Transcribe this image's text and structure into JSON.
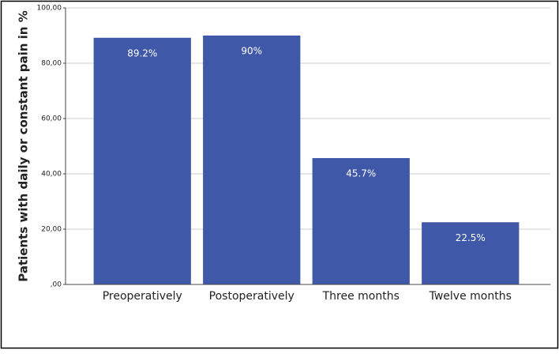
{
  "chart_data": {
    "type": "bar",
    "y_label": "Patients with daily or constant pain in %",
    "categories": [
      "Preoperatively",
      "Postoperatively",
      "Three months",
      "Twelve months"
    ],
    "values": [
      89.2,
      90,
      45.7,
      22.5
    ],
    "value_labels": [
      "89.2%",
      "90%",
      "45.7%",
      "22.5%"
    ],
    "color": "#3f58a8",
    "ylim": [
      0,
      100
    ],
    "yticks": [
      {
        "value": 0,
        "label": ",00"
      },
      {
        "value": 20,
        "label": "20,00"
      },
      {
        "value": 40,
        "label": "40,00"
      },
      {
        "value": 60,
        "label": "60,00"
      },
      {
        "value": 80,
        "label": "80,00"
      },
      {
        "value": 100,
        "label": "100,00"
      }
    ],
    "grid": true
  }
}
